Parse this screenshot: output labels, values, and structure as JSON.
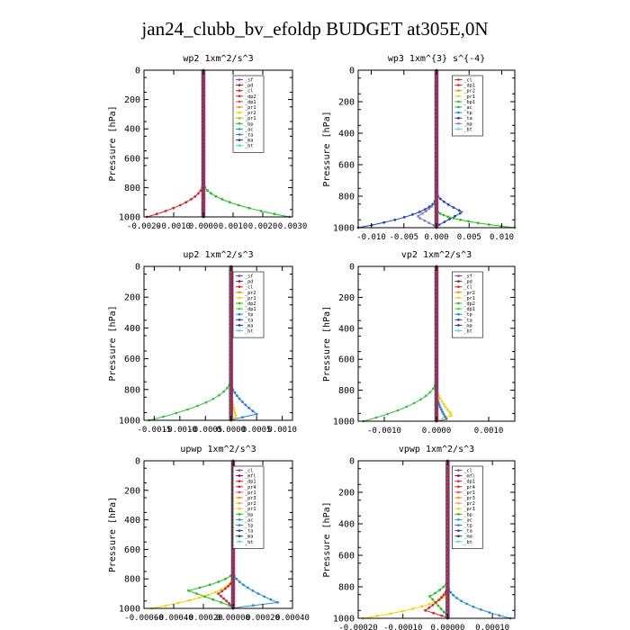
{
  "title": "jan24_clubb_bv_efoldp  BUDGET at305E,0N",
  "chart_data": [
    {
      "type": "line",
      "title": "wp2  1xm^2/s^3",
      "ylabel": "Pressure [hPa]",
      "xlim": [
        -0.002,
        0.003
      ],
      "ylim": [
        1000,
        0
      ],
      "xticks": [
        -0.002,
        -0.001,
        0.0,
        0.001,
        0.002,
        0.003
      ],
      "xtick_labels": [
        "-0.0020",
        "-0.0010",
        "0.0000",
        "0.0010",
        "0.0020",
        "0.0030"
      ],
      "yticks": [
        0,
        200,
        400,
        600,
        800,
        1000
      ],
      "legend": [
        "_sf",
        "_pd",
        "_cl",
        "_dp2",
        "_dp1",
        "_pr1",
        "_pr2",
        "_pr1",
        "_bp",
        "_ac",
        "_ta",
        "_ma",
        "_bt"
      ],
      "legend_colors": [
        "#8040c0",
        "#8b1a4a",
        "#e0202a",
        "#e0202a",
        "#f04060",
        "#ff8c00",
        "#f0d000",
        "#b0c000",
        "#20c020",
        "#20a0a0",
        "#2080e0",
        "#303090",
        "#40e0e0"
      ],
      "series": [
        {
          "name": "_dp1",
          "color": "#e0202a",
          "peak_x": -0.0019,
          "peak_p": 1000,
          "onset_p": 760
        },
        {
          "name": "_bp",
          "color": "#20c020",
          "peak_x": 0.0029,
          "peak_p": 1000,
          "onset_p": 760
        }
      ]
    },
    {
      "type": "line",
      "title": "wp3  1xm^{3} s^{-4}",
      "ylabel": "Pressure [hPa]",
      "xlim": [
        -0.012,
        0.012
      ],
      "ylim": [
        1000,
        0
      ],
      "xticks": [
        -0.01,
        -0.005,
        0.0,
        0.005,
        0.01
      ],
      "xtick_labels": [
        "-0.010",
        "-0.005",
        "0.000",
        "0.005",
        "0.010"
      ],
      "yticks": [
        0,
        200,
        400,
        600,
        800,
        1000
      ],
      "legend": [
        "_cl",
        "_dp1",
        "_pr2",
        "_pr1",
        "_bp1",
        "_ac",
        "_tp",
        "_ta",
        "_ma",
        "_bt"
      ],
      "legend_colors": [
        "#e0202a",
        "#e0202a",
        "#ff8c00",
        "#f0d000",
        "#20c020",
        "#20a0a0",
        "#2080e0",
        "#303090",
        "#8080c0",
        "#40e0e0"
      ],
      "series": [
        {
          "name": "_tp",
          "color": "#2040c0",
          "peak_x": 0.004,
          "peak_p": 900,
          "onset_p": 780,
          "side": 1
        },
        {
          "name": "_ta",
          "color": "#2040c0",
          "peak_x": -0.012,
          "peak_p": 1000,
          "onset_p": 800
        },
        {
          "name": "_ma",
          "color": "#8080c0",
          "peak_x": -0.003,
          "peak_p": 930,
          "onset_p": 820
        },
        {
          "name": "_bp1",
          "color": "#20c020",
          "peak_x": 0.012,
          "peak_p": 1000,
          "onset_p": 880
        }
      ]
    },
    {
      "type": "line",
      "title": "up2  1xm^2/s^3",
      "ylabel": "Pressure [hPa]",
      "xlim": [
        -0.0017,
        0.0012
      ],
      "ylim": [
        1000,
        0
      ],
      "xticks": [
        -0.0015,
        -0.001,
        -0.0005,
        0.0,
        0.0005,
        0.001
      ],
      "xtick_labels": [
        "-0.0015",
        "-0.0010",
        "-0.0005",
        "0.0000",
        "0.0005",
        "0.0010"
      ],
      "yticks": [
        0,
        200,
        400,
        600,
        800,
        1000
      ],
      "legend": [
        "_sf",
        "_pd",
        "_cl",
        "_pr2",
        "_pr1",
        "_dp2",
        "_dp1",
        "_tp",
        "_ta",
        "_ma",
        "_bt"
      ],
      "legend_colors": [
        "#8040c0",
        "#8b1a4a",
        "#e0202a",
        "#ff8c00",
        "#f0d000",
        "#20c020",
        "#40d040",
        "#2080e0",
        "#2040c0",
        "#303090",
        "#40e0e0"
      ],
      "series": [
        {
          "name": "_dp1",
          "color": "#40c040",
          "peak_x": -0.0016,
          "peak_p": 1000,
          "onset_p": 720
        },
        {
          "name": "_tp",
          "color": "#2080e0",
          "peak_x": 0.0005,
          "peak_p": 960,
          "onset_p": 760
        },
        {
          "name": "_pr1",
          "color": "#f0d000",
          "peak_x": 0.0001,
          "peak_p": 980,
          "onset_p": 800
        }
      ]
    },
    {
      "type": "line",
      "title": "vp2  1xm^2/s^3",
      "ylabel": "Pressure [hPa]",
      "xlim": [
        -0.0015,
        0.0015
      ],
      "ylim": [
        1000,
        0
      ],
      "xticks": [
        -0.001,
        0.0,
        0.001
      ],
      "xtick_labels": [
        "-0.0010",
        "0.0000",
        "0.0010"
      ],
      "yticks": [
        0,
        200,
        400,
        600,
        800,
        1000
      ],
      "legend": [
        "_sf",
        "_pd",
        "_cl",
        "_pr2",
        "_pr1",
        "_dp2",
        "_dp1",
        "_tp",
        "_ta",
        "_ma",
        "_bt"
      ],
      "legend_colors": [
        "#8040c0",
        "#8b1a4a",
        "#e0202a",
        "#ff8c00",
        "#f0d000",
        "#20c020",
        "#40d040",
        "#2080e0",
        "#2040c0",
        "#303090",
        "#40e0e0"
      ],
      "series": [
        {
          "name": "_dp1",
          "color": "#40c040",
          "peak_x": -0.0014,
          "peak_p": 1000,
          "onset_p": 720
        },
        {
          "name": "_pr1",
          "color": "#f0d000",
          "peak_x": 0.0003,
          "peak_p": 960,
          "onset_p": 780
        },
        {
          "name": "_tp",
          "color": "#2080e0",
          "peak_x": 0.0002,
          "peak_p": 990,
          "onset_p": 820
        }
      ]
    },
    {
      "type": "line",
      "title": "upwp  1xm^2/s^3",
      "ylabel": "Pressure [hPa]",
      "xlim": [
        -0.0006,
        0.0004
      ],
      "ylim": [
        1000,
        0
      ],
      "xticks": [
        -0.0006,
        -0.0004,
        -0.0002,
        0.0,
        0.0002,
        0.0004
      ],
      "xtick_labels": [
        "-0.00060",
        "-0.00040",
        "-0.00020",
        "0.00000",
        "0.00020",
        "0.00040"
      ],
      "yticks": [
        0,
        200,
        400,
        600,
        800,
        1000
      ],
      "legend": [
        "_cl",
        "_mfl",
        "_dp1",
        "_pr4",
        "_pr1",
        "_pr3",
        "_pr2",
        "_pr1",
        "_bp",
        "_ac",
        "_tp",
        "_ta",
        "_ma",
        "_bt"
      ],
      "legend_colors": [
        "#8040c0",
        "#6a0a6a",
        "#e0202a",
        "#e0202a",
        "#f04060",
        "#ff8c00",
        "#ffa040",
        "#f0d000",
        "#20c020",
        "#20a0a0",
        "#2080e0",
        "#2040c0",
        "#303090",
        "#40e0e0"
      ],
      "series": [
        {
          "name": "_pr1",
          "color": "#f0d000",
          "peak_x": -0.00055,
          "peak_p": 1000,
          "onset_p": 780
        },
        {
          "name": "_bp",
          "color": "#20c020",
          "peak_x": -0.0003,
          "peak_p": 880,
          "onset_p": 760
        },
        {
          "name": "_tp",
          "color": "#2090d0",
          "peak_x": 0.0003,
          "peak_p": 960,
          "onset_p": 760
        },
        {
          "name": "_dp1",
          "color": "#e0202a",
          "peak_x": -0.0001,
          "peak_p": 900,
          "onset_p": 800
        }
      ]
    },
    {
      "type": "line",
      "title": "vpwp  1xm^2/s^3",
      "ylabel": "Pressure [hPa]",
      "xlim": [
        -0.0002,
        0.00015
      ],
      "ylim": [
        1000,
        0
      ],
      "xticks": [
        -0.0002,
        -0.0001,
        0.0,
        0.0001
      ],
      "xtick_labels": [
        "-0.00020",
        "-0.00010",
        "0.00000",
        "0.00010"
      ],
      "yticks": [
        0,
        200,
        400,
        600,
        800,
        1000
      ],
      "legend": [
        "_cl",
        "_mfl",
        "_dp1",
        "_pr4",
        "_pr1",
        "_pr3",
        "_pr2",
        "_pr1",
        "_bp",
        "_ac",
        "_tp",
        "_ta",
        "_ma",
        "_bt"
      ],
      "legend_colors": [
        "#8040c0",
        "#6a0a6a",
        "#e0202a",
        "#e0202a",
        "#f04060",
        "#ff8c00",
        "#ffa040",
        "#f0d000",
        "#20c020",
        "#20a0a0",
        "#2080e0",
        "#2040c0",
        "#303090",
        "#40e0e0"
      ],
      "series": [
        {
          "name": "_pr1",
          "color": "#f0d000",
          "peak_x": -0.00019,
          "peak_p": 1000,
          "onset_p": 820
        },
        {
          "name": "_tp",
          "color": "#2090d0",
          "peak_x": 0.00014,
          "peak_p": 1000,
          "onset_p": 780
        },
        {
          "name": "_bp",
          "color": "#20c020",
          "peak_x": -4e-05,
          "peak_p": 860,
          "onset_p": 760
        },
        {
          "name": "_dp1",
          "color": "#e0202a",
          "peak_x": -5e-05,
          "peak_p": 950,
          "onset_p": 800
        }
      ]
    }
  ]
}
